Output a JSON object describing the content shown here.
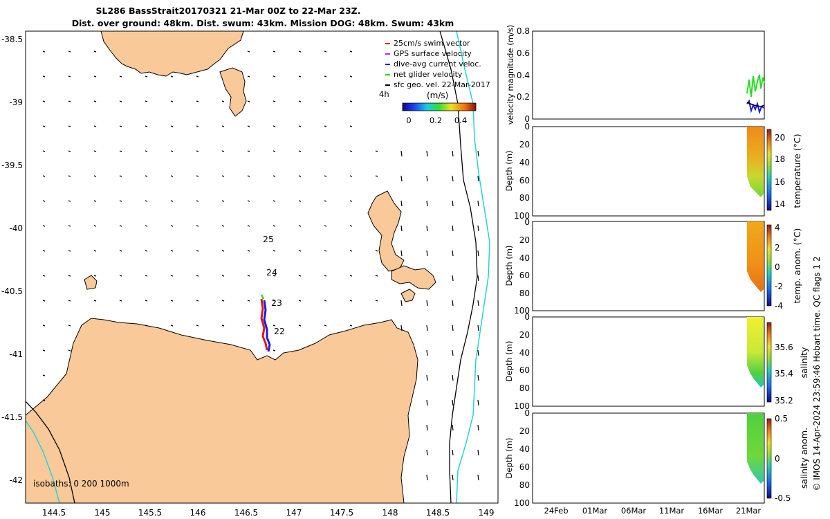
{
  "header": {
    "title_line1": "SL286 BassStrait20170321 21-Mar 00Z to 22-Mar 23Z.",
    "title_line2": "Dist. over ground: 48km. Dist. swum: 43km. Mission DOG: 48km. Swum: 43km"
  },
  "colors": {
    "land": "#f9c99a",
    "sea": "#ffffff",
    "isobath_200": "#000000",
    "isobath_1000": "#22d4d8",
    "track_red": "#e8121b",
    "track_blue": "#1c1cd8",
    "track_green": "#22e022"
  },
  "map": {
    "legend": {
      "items": [
        {
          "label": "25cm/s swim vector",
          "color": "#e8121b"
        },
        {
          "label": "GPS surface velocity",
          "color": "#d020d0"
        },
        {
          "label": "dive-avg current veloc.",
          "color": "#1c1cd8"
        },
        {
          "label": "net glider velocity",
          "color": "#22e022"
        },
        {
          "label": "sfc geo. vel. 22-Mar-2017",
          "color": "#000000"
        }
      ],
      "time_label": "4h",
      "colorbar_title": "(m/s)",
      "colorbar_ticks": [
        "0",
        "0.2",
        "0.4"
      ]
    },
    "isobath_label": "isobaths: 0   200  1000m",
    "day_labels": [
      "25",
      "24",
      "23",
      "22"
    ],
    "x_ticks": [
      "144.5",
      "145",
      "145.5",
      "146",
      "146.5",
      "147",
      "147.5",
      "148",
      "148.5",
      "149"
    ],
    "y_ticks": [
      "-38.5",
      "-39",
      "-39.5",
      "-40",
      "-40.5",
      "-41",
      "-41.5",
      "-42"
    ]
  },
  "panels": {
    "x_ticks": [
      "24Feb",
      "01Mar",
      "06Mar",
      "11Mar",
      "16Mar",
      "21Mar"
    ],
    "velocity": {
      "ylabel": "velocity magnitude (m/s)",
      "y_ticks": [
        "0",
        "0.2",
        "0.4",
        "0.6",
        "0.8"
      ]
    },
    "depth_ylabel": "Depth (m)",
    "depth_ticks": [
      "0",
      "20",
      "40",
      "60",
      "80",
      "100"
    ],
    "temperature": {
      "label": "temperature (°C)",
      "ticks": [
        "20",
        "18",
        "16",
        "14"
      ]
    },
    "temp_anom": {
      "label": "temp. anom. (°C)",
      "ticks": [
        "4",
        "2",
        "0",
        "-2",
        "-4"
      ]
    },
    "salinity": {
      "label": "salinity",
      "ticks": [
        "35.6",
        "35.4",
        "35.2"
      ]
    },
    "sal_anom": {
      "label": "salinity anom.",
      "ticks": [
        "0.5",
        "0",
        "-0.5"
      ]
    }
  },
  "footer": {
    "credit": "© IMOS 14-Apr-2024 23:59:46 Hobart time. QC flags 1  2"
  },
  "chart_data": [
    {
      "type": "scatter",
      "title": "SL286 BassStrait20170321 21-Mar 00Z to 22-Mar 23Z.",
      "xlim": [
        144.2,
        149.1
      ],
      "ylim": [
        -42.2,
        -38.4
      ],
      "track": {
        "lon": [
          146.66,
          146.67,
          146.68,
          146.69,
          146.7,
          146.71,
          146.72,
          146.73,
          146.74,
          146.75
        ],
        "lat": [
          -40.55,
          -40.62,
          -40.68,
          -40.74,
          -40.8,
          -40.85,
          -40.9,
          -40.94,
          -40.97,
          -40.99
        ]
      },
      "day_markers": [
        {
          "label": "25",
          "lon": 146.71,
          "lat": -40.09
        },
        {
          "label": "24",
          "lon": 146.73,
          "lat": -40.36
        },
        {
          "label": "23",
          "lon": 146.75,
          "lat": -40.6
        },
        {
          "label": "22",
          "lon": 146.78,
          "lat": -40.86
        }
      ]
    },
    {
      "type": "line",
      "ylabel": "velocity magnitude (m/s)",
      "ylim": [
        0,
        0.8
      ],
      "series": [
        {
          "name": "net glider velocity",
          "color": "#22e022",
          "values": [
            0.25,
            0.32,
            0.22,
            0.35,
            0.28,
            0.38,
            0.3,
            0.36,
            0.4,
            0.33
          ]
        },
        {
          "name": "dive-avg current veloc.",
          "color": "#1c1cd8",
          "values": [
            0.15,
            0.12,
            0.08,
            0.14,
            0.1,
            0.13,
            0.09,
            0.12,
            0.11,
            0.14
          ]
        },
        {
          "name": "sfc geo. vel. 22-Mar-2017",
          "color": "#000000",
          "values": [
            0.14,
            0.13,
            0.12,
            0.12,
            0.11,
            0.11,
            0.1,
            0.1,
            0.11,
            0.12
          ]
        }
      ]
    },
    {
      "type": "heatmap",
      "name": "temperature (°C)",
      "zlim": [
        13,
        21
      ],
      "ylim": [
        100,
        0
      ]
    },
    {
      "type": "heatmap",
      "name": "temp. anom. (°C)",
      "zlim": [
        -4,
        4
      ],
      "ylim": [
        100,
        0
      ]
    },
    {
      "type": "heatmap",
      "name": "salinity",
      "zlim": [
        35.15,
        35.75
      ],
      "ylim": [
        100,
        0
      ]
    },
    {
      "type": "heatmap",
      "name": "salinity anom.",
      "zlim": [
        -0.5,
        0.5
      ],
      "ylim": [
        100,
        0
      ]
    }
  ]
}
